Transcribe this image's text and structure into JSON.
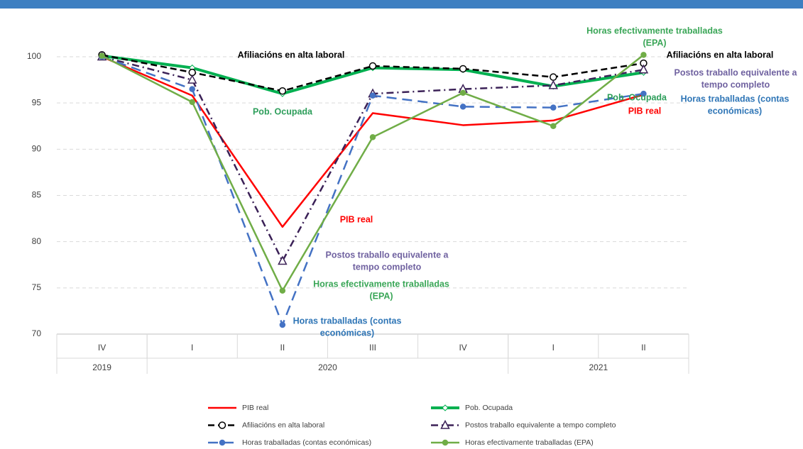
{
  "chart_data": {
    "type": "line",
    "categories": [
      "IV",
      "I",
      "II",
      "III",
      "IV",
      "I",
      "II"
    ],
    "category_groups": [
      {
        "name": "2019",
        "count": 1
      },
      {
        "name": "2020",
        "count": 4
      },
      {
        "name": "2021",
        "count": 2
      }
    ],
    "ylim": [
      70,
      100
    ],
    "yticks": [
      70,
      75,
      80,
      85,
      90,
      95,
      100
    ],
    "grid": true,
    "series": [
      {
        "name": "PIB real",
        "color": "#ff0000",
        "width": 2.5,
        "dash": "solid",
        "marker": "none",
        "values": [
          100,
          95.8,
          81.6,
          93.9,
          92.6,
          93.1,
          95.9
        ]
      },
      {
        "name": "Pob. Ocupada",
        "color": "#00b050",
        "width": 4,
        "dash": "solid",
        "marker": "diamond-open",
        "values": [
          100.1,
          98.8,
          96.0,
          98.8,
          98.6,
          96.8,
          98.3
        ]
      },
      {
        "name": "Afiliacións en alta laboral",
        "color": "#000000",
        "width": 2.5,
        "dash": "dash",
        "marker": "circle-open",
        "values": [
          100.2,
          98.3,
          96.3,
          99.0,
          98.7,
          97.8,
          99.3
        ]
      },
      {
        "name": "Postos traballo equivalente a tempo completo",
        "color": "#3b2157",
        "width": 2.5,
        "dash": "dashdot",
        "marker": "triangle-open",
        "values": [
          100,
          97.5,
          77.9,
          96.0,
          96.5,
          96.9,
          98.6
        ]
      },
      {
        "name": "Horas traballadas (contas económicas)",
        "color": "#4472c4",
        "width": 2.5,
        "dash": "longdash",
        "marker": "circle",
        "values": [
          100,
          96.5,
          71.0,
          95.8,
          94.6,
          94.5,
          96.0
        ]
      },
      {
        "name": "Horas efectivamente traballadas (EPA)",
        "color": "#70ad47",
        "width": 2.5,
        "dash": "solid",
        "marker": "circle",
        "values": [
          100.1,
          95.1,
          74.7,
          91.3,
          96.1,
          92.5,
          100.2
        ]
      }
    ],
    "annotations": [
      {
        "text": [
          "Afiliacións  en alta laboral"
        ],
        "color": "#000000"
      },
      {
        "text": [
          "Pob. Ocupada"
        ],
        "color": "#2e9e5b"
      },
      {
        "text": [
          "PIB real"
        ],
        "color": "#ff0000"
      },
      {
        "text": [
          "Postos traballo equivalente a",
          "tempo completo"
        ],
        "color": "#7062a0"
      },
      {
        "text": [
          "Horas efectivamente traballadas",
          "(EPA)"
        ],
        "color": "#3aa657"
      },
      {
        "text": [
          "Horas traballadas  (contas",
          "económicas)"
        ],
        "color": "#2e75b6"
      },
      {
        "text": [
          "Horas efectivamente traballadas",
          "(EPA)"
        ],
        "color": "#3aa657"
      },
      {
        "text": [
          "Afiliacións  en alta laboral"
        ],
        "color": "#000000"
      },
      {
        "text": [
          "Postos traballo equivalente a",
          "tempo completo"
        ],
        "color": "#7062a0"
      },
      {
        "text": [
          "Pob. Ocupada"
        ],
        "color": "#2e9e5b"
      },
      {
        "text": [
          "Horas traballadas  (contas",
          "económicas)"
        ],
        "color": "#2e75b6"
      },
      {
        "text": [
          "PIB real"
        ],
        "color": "#ff0000"
      }
    ]
  }
}
